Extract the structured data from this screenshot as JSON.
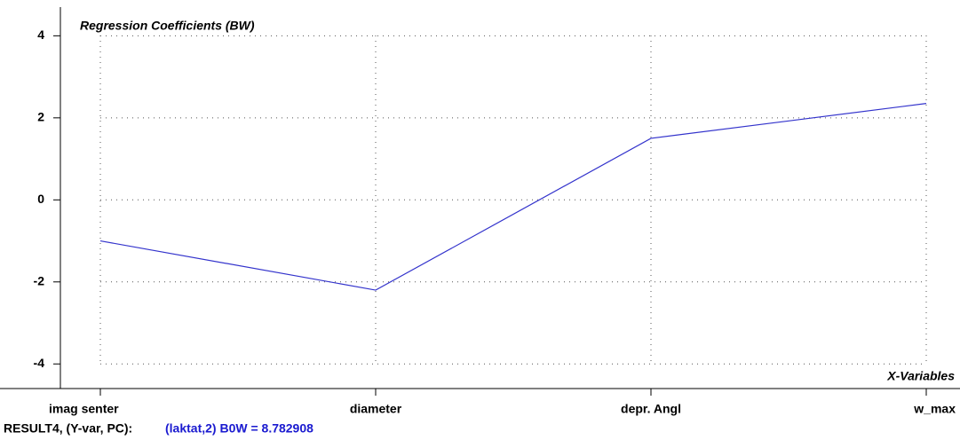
{
  "chart_data": {
    "type": "line",
    "title": "Regression Coefficients (BW)",
    "x_label": "X-Variables",
    "categories": [
      "imag senter",
      "diameter",
      "depr. Angl",
      "w_max"
    ],
    "series": [
      {
        "name": "Regression Coefficients (BW)",
        "color": "#3333cc",
        "values": [
          -1.0,
          -2.2,
          1.5,
          2.35
        ]
      }
    ],
    "ylim": [
      -4.6,
      4.7
    ],
    "yticks": [
      -4,
      -2,
      0,
      2,
      4
    ],
    "grid": true
  },
  "status": {
    "label": "RESULT4, (Y-var, PC):",
    "value": "(laktat,2) B0W = 8.782908"
  }
}
